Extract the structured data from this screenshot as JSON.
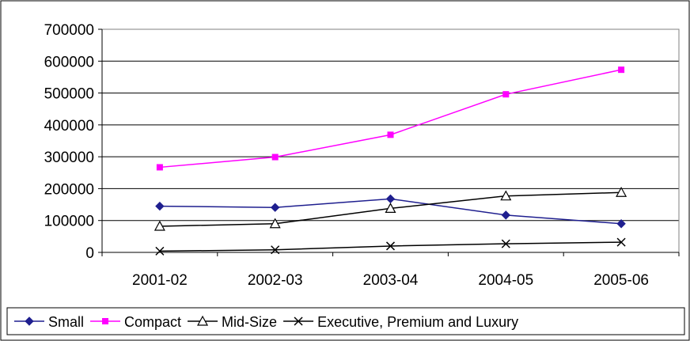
{
  "chart_data": {
    "type": "line",
    "title": "",
    "xlabel": "",
    "ylabel": "",
    "categories": [
      "2001-02",
      "2002-03",
      "2003-04",
      "2004-05",
      "2005-06"
    ],
    "ylim": [
      0,
      700000
    ],
    "yticks": [
      0,
      100000,
      200000,
      300000,
      400000,
      500000,
      600000,
      700000
    ],
    "ytick_labels": [
      "0",
      "100000",
      "200000",
      "300000",
      "400000",
      "500000",
      "600000",
      "700000"
    ],
    "grid": true,
    "legend_position": "bottom",
    "series": [
      {
        "name": "Small",
        "values": [
          145000,
          141000,
          168000,
          117000,
          90000
        ],
        "color": "#1f1f8f",
        "marker": "diamond"
      },
      {
        "name": "Compact",
        "values": [
          267000,
          299000,
          369000,
          496000,
          573000
        ],
        "color": "#ff00ff",
        "marker": "square"
      },
      {
        "name": "Mid-Size",
        "values": [
          82000,
          90000,
          138000,
          177000,
          188000
        ],
        "color": "#000000",
        "marker": "triangle-open"
      },
      {
        "name": "Executive, Premium and Luxury",
        "values": [
          4000,
          8000,
          20000,
          27000,
          32000
        ],
        "color": "#000000",
        "marker": "x"
      }
    ]
  }
}
